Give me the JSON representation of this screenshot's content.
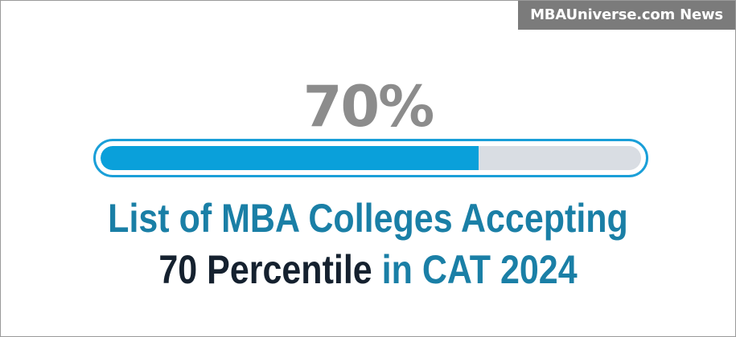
{
  "badge": {
    "text": "MBAUniverse.com News"
  },
  "progress": {
    "label": "70%",
    "value_percent": 70,
    "fill_color": "#0aa0da",
    "track_color": "#d9dde3",
    "border_color": "#1a9fd8"
  },
  "headline": {
    "line1": "List of MBA Colleges Accepting",
    "line2_part1": "70 Percentile",
    "line2_part2": "in CAT 2024"
  },
  "colors": {
    "headline_blue": "#1a7fa6",
    "headline_dark": "#15212f",
    "percent_gray": "#8c8c8c",
    "badge_gray": "#7b7b7b"
  }
}
